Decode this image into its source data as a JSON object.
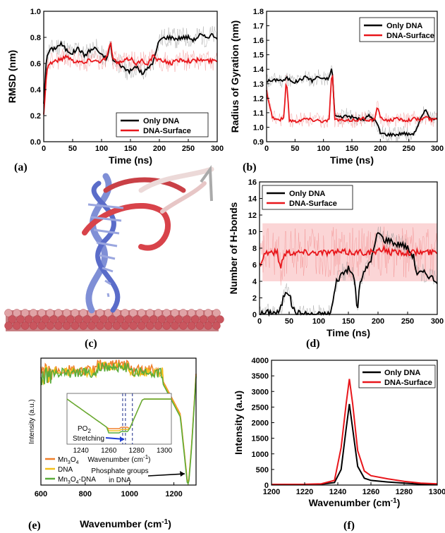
{
  "colors": {
    "only_dna": "#000000",
    "dna_surface": "#e8161b",
    "mn3o4": "#f07f2a",
    "dna": "#f3c01a",
    "mn3o4_dna": "#5aab3a",
    "annot": "#1f3fd6"
  },
  "panels": {
    "a": "(a)",
    "b": "(b)",
    "c": "(c)",
    "d": "(d)",
    "e": "(e)",
    "f": "(f)"
  },
  "chart_data": [
    {
      "id": "a",
      "type": "line",
      "xlabel": "Time (ns)",
      "ylabel": "RMSD (nm)",
      "xlim": [
        0,
        300
      ],
      "ylim": [
        0,
        1.0
      ],
      "xticks": [
        0,
        50,
        100,
        150,
        200,
        250,
        300
      ],
      "yticks": [
        0.0,
        0.2,
        0.4,
        0.6,
        0.8,
        1.0
      ],
      "legend_position": "bottom-right",
      "x": [
        0,
        5,
        10,
        20,
        30,
        40,
        50,
        60,
        70,
        80,
        90,
        100,
        110,
        115,
        120,
        130,
        140,
        150,
        160,
        170,
        180,
        190,
        195,
        200,
        210,
        220,
        230,
        240,
        250,
        260,
        270,
        280,
        290,
        300
      ],
      "series": [
        {
          "name": "Only DNA",
          "values": [
            0.3,
            0.65,
            0.7,
            0.72,
            0.75,
            0.7,
            0.68,
            0.72,
            0.66,
            0.7,
            0.72,
            0.66,
            0.64,
            0.76,
            0.62,
            0.6,
            0.56,
            0.54,
            0.58,
            0.52,
            0.56,
            0.62,
            0.7,
            0.78,
            0.8,
            0.8,
            0.79,
            0.8,
            0.8,
            0.78,
            0.82,
            0.8,
            0.82,
            0.8
          ]
        },
        {
          "name": "DNA-Surface",
          "values": [
            0.2,
            0.55,
            0.6,
            0.62,
            0.63,
            0.66,
            0.62,
            0.62,
            0.6,
            0.63,
            0.62,
            0.62,
            0.65,
            0.78,
            0.63,
            0.6,
            0.62,
            0.64,
            0.6,
            0.62,
            0.6,
            0.66,
            0.63,
            0.62,
            0.62,
            0.6,
            0.62,
            0.63,
            0.62,
            0.62,
            0.63,
            0.62,
            0.62,
            0.62
          ]
        }
      ]
    },
    {
      "id": "b",
      "type": "line",
      "xlabel": "Time (ns)",
      "ylabel": "Radius of Gyration (nm)",
      "xlim": [
        0,
        300
      ],
      "ylim": [
        0.9,
        1.8
      ],
      "xticks": [
        0,
        50,
        100,
        150,
        200,
        250,
        300
      ],
      "yticks": [
        0.9,
        1.0,
        1.1,
        1.2,
        1.3,
        1.4,
        1.5,
        1.6,
        1.7,
        1.8
      ],
      "legend_position": "top-right",
      "x": [
        0,
        10,
        20,
        30,
        35,
        40,
        50,
        60,
        70,
        80,
        90,
        100,
        110,
        115,
        120,
        130,
        140,
        150,
        160,
        170,
        180,
        190,
        195,
        200,
        210,
        220,
        230,
        240,
        250,
        260,
        270,
        280,
        290,
        300
      ],
      "series": [
        {
          "name": "Only DNA",
          "values": [
            1.32,
            1.32,
            1.33,
            1.32,
            1.34,
            1.33,
            1.31,
            1.33,
            1.35,
            1.32,
            1.35,
            1.33,
            1.34,
            1.42,
            1.08,
            1.07,
            1.08,
            1.07,
            1.06,
            1.05,
            1.08,
            1.05,
            1.02,
            0.96,
            0.95,
            0.95,
            0.95,
            0.96,
            0.95,
            0.96,
            1.05,
            1.12,
            1.05,
            1.07
          ]
        },
        {
          "name": "DNA-Surface",
          "values": [
            1.25,
            1.07,
            1.05,
            1.06,
            1.34,
            1.05,
            1.04,
            1.05,
            1.06,
            1.05,
            1.05,
            1.04,
            1.05,
            1.42,
            1.05,
            1.05,
            1.04,
            1.05,
            1.05,
            1.06,
            1.05,
            1.05,
            1.15,
            1.06,
            1.05,
            1.05,
            1.06,
            1.05,
            1.05,
            1.06,
            1.05,
            1.07,
            1.05,
            1.06
          ]
        }
      ]
    },
    {
      "id": "d",
      "type": "line",
      "xlabel": "Time (ns)",
      "ylabel": "Number of H-bonds",
      "xlim": [
        0,
        300
      ],
      "ylim": [
        0,
        16
      ],
      "xticks": [
        0,
        50,
        100,
        150,
        200,
        250,
        300
      ],
      "yticks": [
        0,
        2,
        4,
        6,
        8,
        10,
        12,
        14,
        16
      ],
      "legend_position": "top-left",
      "x": [
        0,
        10,
        20,
        30,
        35,
        40,
        45,
        50,
        55,
        60,
        70,
        80,
        100,
        115,
        120,
        125,
        130,
        140,
        150,
        160,
        165,
        170,
        180,
        190,
        200,
        210,
        220,
        230,
        240,
        250,
        260,
        265,
        270,
        280,
        290,
        300
      ],
      "series": [
        {
          "name": "Only DNA",
          "values": [
            0,
            0.2,
            0.3,
            0.2,
            0.5,
            2,
            3,
            2.5,
            1,
            0.3,
            0.1,
            0,
            0,
            0,
            0.2,
            2,
            4,
            5,
            5.5,
            4.5,
            0.3,
            4,
            5.5,
            7,
            10,
            9,
            9,
            8.5,
            8.5,
            8,
            7,
            5,
            5,
            5,
            4.5,
            4
          ]
        },
        {
          "name": "DNA-Surface",
          "values": [
            6,
            7.5,
            7.5,
            7.5,
            5.5,
            7,
            7.5,
            7.5,
            7.5,
            7.5,
            7.5,
            7.5,
            7.5,
            7.5,
            7.5,
            7.5,
            7.5,
            7.5,
            7.5,
            7.5,
            7.5,
            7.5,
            7.5,
            7.5,
            7.5,
            8,
            7.5,
            7.5,
            7.5,
            7.5,
            7.5,
            7.5,
            7.5,
            7.5,
            7.5,
            7.5
          ]
        }
      ]
    },
    {
      "id": "e",
      "type": "line",
      "xlabel": "Wavenumber (cm-1)",
      "ylabel": "Intensity (a.u.)",
      "xlim": [
        600,
        1300
      ],
      "xticks": [
        600,
        800,
        1000,
        1200
      ],
      "legend_position": "bottom-left",
      "annotation": "Phosphate groups in DNA",
      "inset": {
        "xlabel": "Wavenumber (cm-1)",
        "xticks": [
          1240,
          1260,
          1280,
          1300
        ],
        "xlim": [
          1230,
          1305
        ],
        "annotation": "PO2 Stretching"
      },
      "series_names": [
        "Mn3O4",
        "DNA",
        "Mn3O4-DNA"
      ]
    },
    {
      "id": "f",
      "type": "line",
      "xlabel": "Wavenumber (cm-1)",
      "ylabel": "Intensity (a.u)",
      "xlim": [
        1200,
        1300
      ],
      "ylim": [
        0,
        4000
      ],
      "xticks": [
        1200,
        1220,
        1240,
        1260,
        1280,
        1300
      ],
      "yticks": [
        0,
        500,
        1000,
        1500,
        2000,
        2500,
        3000,
        3500,
        4000
      ],
      "legend_position": "top-right",
      "x": [
        1200,
        1220,
        1230,
        1238,
        1242,
        1245,
        1247,
        1249,
        1252,
        1256,
        1260,
        1270,
        1280,
        1290,
        1300
      ],
      "series": [
        {
          "name": "Only DNA",
          "values": [
            20,
            20,
            30,
            80,
            500,
            1800,
            2600,
            1800,
            600,
            220,
            150,
            100,
            60,
            30,
            20
          ]
        },
        {
          "name": "DNA-Surface",
          "values": [
            20,
            25,
            40,
            150,
            1200,
            2600,
            3400,
            2600,
            1100,
            450,
            300,
            200,
            120,
            60,
            40
          ]
        }
      ]
    }
  ],
  "legend_e": [
    "Mn3O4",
    "DNA",
    "Mn3O4-DNA"
  ],
  "inset_annot": "PO2 Stretching",
  "annot_e": [
    "Phosphate groups",
    "in DNA"
  ],
  "e_unit_label": "Wavenumber (cm-1)"
}
